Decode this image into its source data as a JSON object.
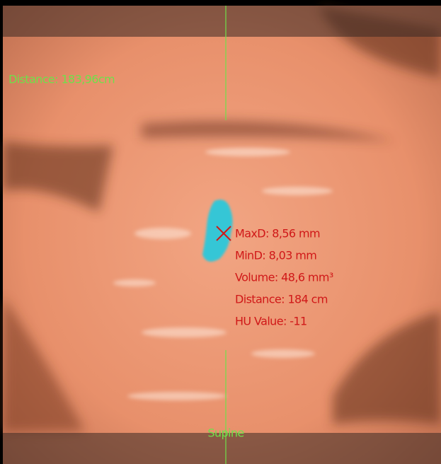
{
  "overlay": {
    "distance_top": "Distance: 183,96cm",
    "orientation": "Supine"
  },
  "measurement": {
    "maxd": "MaxD: 8,56 mm",
    "mind": "MinD: 8,03 mm",
    "volume": "Volume: 48,6  mm³",
    "distance": "Distance: 184 cm",
    "hu_value": "HU Value: -11"
  }
}
